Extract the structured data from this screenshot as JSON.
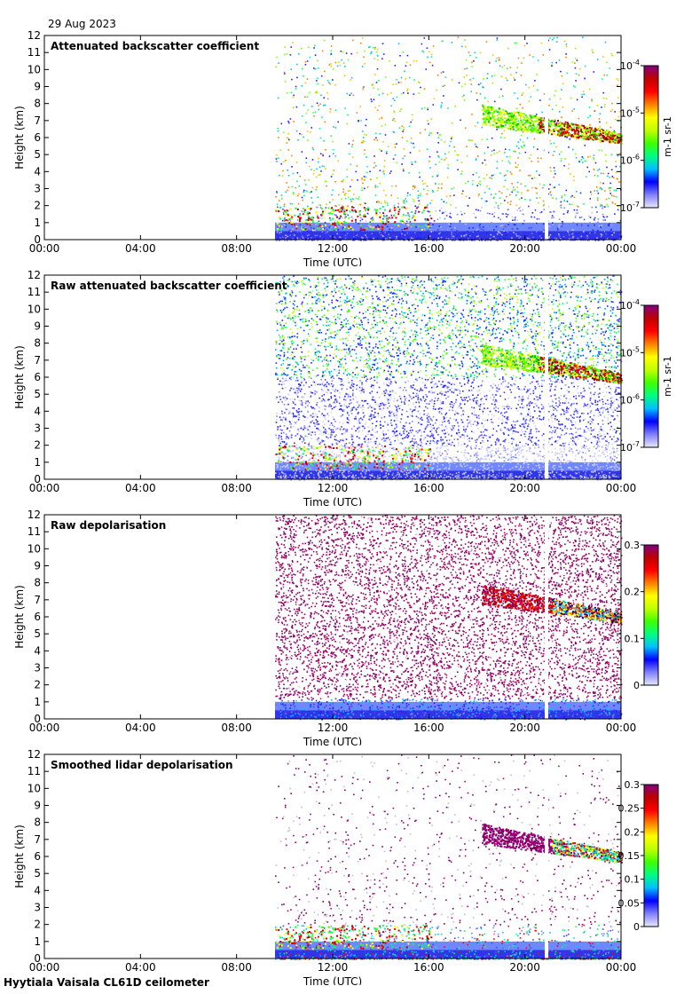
{
  "date": "29 Aug 2023",
  "footer": "Hyytiala Vaisala CL61D ceilometer",
  "x_ticks": [
    "00:00",
    "04:00",
    "08:00",
    "12:00",
    "16:00",
    "20:00",
    "00:00"
  ],
  "y_ticks": [
    "0",
    "1",
    "2",
    "3",
    "4",
    "5",
    "6",
    "7",
    "8",
    "9",
    "10",
    "11",
    "12"
  ],
  "xlabel": "Time (UTC)",
  "ylabel": "Height (km)",
  "colors": {
    "rainbow": [
      "#e8e8f8",
      "#8080ff",
      "#0000ff",
      "#00c0ff",
      "#00ff80",
      "#40ff00",
      "#c0ff00",
      "#ffff00",
      "#ff8000",
      "#ff0000",
      "#c00000",
      "#800080"
    ],
    "purple": "#800060",
    "gap": "#ffffff"
  },
  "chart_data": [
    {
      "type": "heatmap",
      "title": "Attenuated backscatter coefficient",
      "x_range_hours": [
        0,
        24
      ],
      "ylim_km": [
        0,
        12
      ],
      "data_start_hour": 9.6,
      "gap_hour": 20.9,
      "colorbar": {
        "scale": "log",
        "ticks": [
          "10-7",
          "10-6",
          "10-5",
          "10-4"
        ],
        "unit": "m-1 sr-1"
      },
      "cloud_layer": {
        "start_hour": 18.2,
        "end_hour": 24,
        "base_start_km": 7.0,
        "base_end_km": 5.8
      },
      "boundary_layer_top_km": 1.9
    },
    {
      "type": "heatmap",
      "title": "Raw attenuated backscatter coefficient",
      "x_range_hours": [
        0,
        24
      ],
      "ylim_km": [
        0,
        12
      ],
      "data_start_hour": 9.6,
      "gap_hour": 20.9,
      "colorbar": {
        "scale": "log",
        "ticks": [
          "10-7",
          "10-6",
          "10-5",
          "10-4"
        ],
        "unit": "m-1 sr-1"
      },
      "cloud_layer": {
        "start_hour": 18.2,
        "end_hour": 24,
        "base_start_km": 7.0,
        "base_end_km": 5.8
      },
      "boundary_layer_top_km": 1.9
    },
    {
      "type": "heatmap",
      "title": "Raw depolarisation",
      "x_range_hours": [
        0,
        24
      ],
      "ylim_km": [
        0,
        12
      ],
      "data_start_hour": 9.6,
      "gap_hour": 20.9,
      "colorbar": {
        "scale": "linear",
        "ticks": [
          "0",
          "0.1",
          "0.2",
          "0.3"
        ],
        "unit": ""
      },
      "cloud_layer": {
        "start_hour": 18.2,
        "end_hour": 24,
        "base_start_km": 7.0,
        "base_end_km": 5.8
      },
      "boundary_layer_top_km": 1.9
    },
    {
      "type": "heatmap",
      "title": "Smoothed lidar depolarisation",
      "x_range_hours": [
        0,
        24
      ],
      "ylim_km": [
        0,
        12
      ],
      "data_start_hour": 9.6,
      "gap_hour": 20.9,
      "colorbar": {
        "scale": "linear",
        "ticks": [
          "0",
          "0.05",
          "0.1",
          "0.15",
          "0.2",
          "0.25",
          "0.3"
        ],
        "unit": ""
      },
      "cloud_layer": {
        "start_hour": 18.2,
        "end_hour": 24,
        "base_start_km": 7.0,
        "base_end_km": 5.8
      },
      "boundary_layer_top_km": 1.9
    }
  ]
}
